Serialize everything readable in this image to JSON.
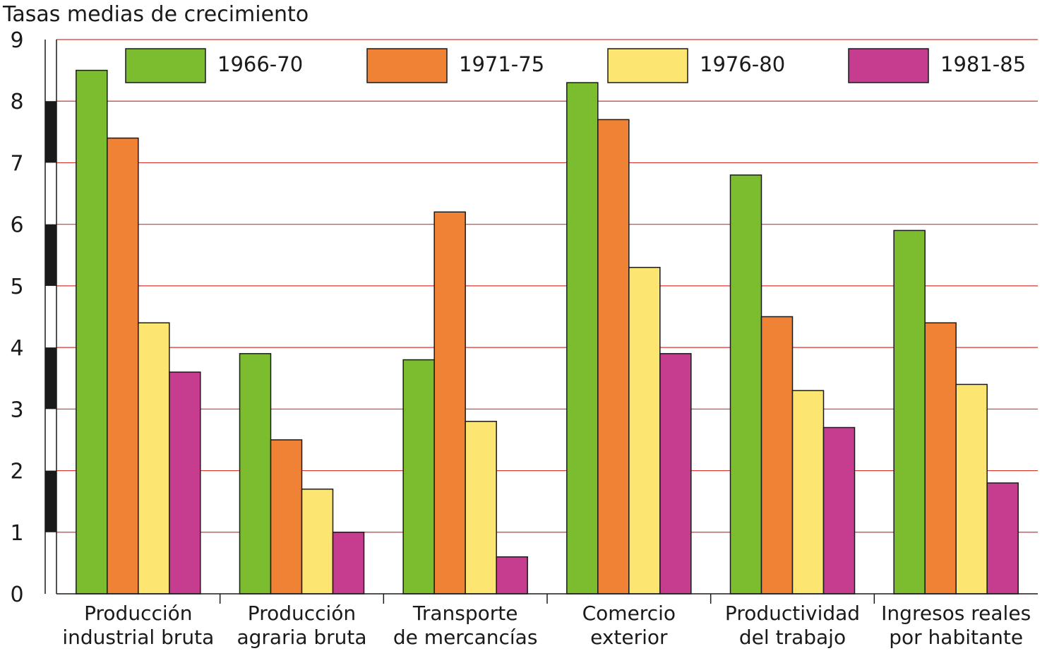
{
  "chart_data": {
    "type": "bar",
    "title": "Tasas medias de crecimiento",
    "xlabel": "",
    "ylabel": "",
    "ylim": [
      0,
      9
    ],
    "yticks": [
      0,
      1,
      2,
      3,
      4,
      5,
      6,
      7,
      8,
      9
    ],
    "grid": true,
    "legend_position": "top",
    "categories": [
      [
        "Producción",
        "industrial bruta"
      ],
      [
        "Producción",
        "agraria bruta"
      ],
      [
        "Transporte",
        "de mercancías"
      ],
      [
        "Comercio",
        "exterior"
      ],
      [
        "Productividad",
        "del trabajo"
      ],
      [
        "Ingresos reales",
        "por habitante"
      ]
    ],
    "series": [
      {
        "name": "1966-70",
        "color": "#7bbd2e",
        "values": [
          8.5,
          3.9,
          3.8,
          8.3,
          6.8,
          5.9
        ]
      },
      {
        "name": "1971-75",
        "color": "#f08235",
        "values": [
          7.4,
          2.5,
          6.2,
          7.7,
          4.5,
          4.4
        ]
      },
      {
        "name": "1976-80",
        "color": "#fde572",
        "values": [
          4.4,
          1.7,
          2.8,
          5.3,
          3.3,
          3.4
        ]
      },
      {
        "name": "1981-85",
        "color": "#c63d8f",
        "values": [
          3.6,
          1.0,
          0.6,
          3.9,
          2.7,
          1.8
        ]
      }
    ],
    "gridline_color": "#d9342b"
  }
}
